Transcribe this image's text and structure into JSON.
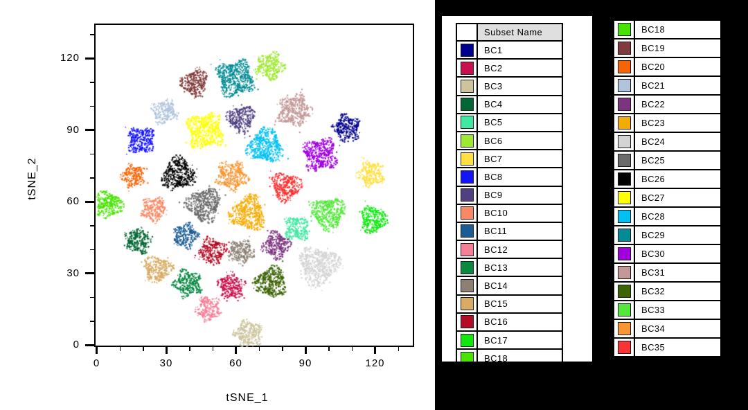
{
  "chart_data": {
    "type": "scatter",
    "title": "",
    "xlabel": "tSNE_1",
    "ylabel": "tSNE_2",
    "xlim": [
      -1,
      137
    ],
    "ylim": [
      -1,
      134.5
    ],
    "x_major_ticks": [
      0,
      30,
      60,
      90,
      120
    ],
    "y_major_ticks": [
      0,
      30,
      60,
      90,
      120
    ],
    "minor_tick_interval": 10,
    "grid": false,
    "legend_position": "right-two-column-table",
    "clusters": [
      {
        "name": "BC1",
        "color": "#00008F",
        "cx": 107.5,
        "cy": 91,
        "r": 5.3
      },
      {
        "name": "BC2",
        "color": "#C8104C",
        "cx": 58,
        "cy": 25,
        "r": 5.2
      },
      {
        "name": "BC3",
        "color": "#CCC49C",
        "cx": 65,
        "cy": 5,
        "r": 5.5
      },
      {
        "name": "BC4",
        "color": "#006633",
        "cx": 17.5,
        "cy": 44,
        "r": 5.2
      },
      {
        "name": "BC5",
        "color": "#40E8A0",
        "cx": 86,
        "cy": 49,
        "r": 5.0
      },
      {
        "name": "BC6",
        "color": "#9FE832",
        "cx": 74.5,
        "cy": 117,
        "r": 5.5
      },
      {
        "name": "BC7",
        "color": "#FFE040",
        "cx": 118,
        "cy": 72,
        "r": 5.2
      },
      {
        "name": "BC8",
        "color": "#1414FF",
        "cx": 19,
        "cy": 86,
        "r": 5.4
      },
      {
        "name": "BC9",
        "color": "#504080",
        "cx": 62,
        "cy": 95,
        "r": 5.5
      },
      {
        "name": "BC10",
        "color": "#FA8864",
        "cx": 24.5,
        "cy": 57,
        "r": 5.0
      },
      {
        "name": "BC11",
        "color": "#1C5C94",
        "cx": 38,
        "cy": 46,
        "r": 5.0
      },
      {
        "name": "BC12",
        "color": "#F48098",
        "cx": 48,
        "cy": 15.5,
        "r": 5.0
      },
      {
        "name": "BC13",
        "color": "#088840",
        "cx": 39,
        "cy": 26,
        "r": 5.4
      },
      {
        "name": "BC14",
        "color": "#8C8074",
        "cx": 62,
        "cy": 39,
        "r": 5.0
      },
      {
        "name": "BC15",
        "color": "#D8AC64",
        "cx": 26,
        "cy": 32,
        "r": 5.5
      },
      {
        "name": "BC16",
        "color": "#B40C24",
        "cx": 49.5,
        "cy": 39.5,
        "r": 5.4
      },
      {
        "name": "BC17",
        "color": "#10E810",
        "cx": 119,
        "cy": 53,
        "r": 5.4
      },
      {
        "name": "BC18",
        "color": "#48E400",
        "cx": 5,
        "cy": 59,
        "r": 5.5
      },
      {
        "name": "BC19",
        "color": "#803C3C",
        "cx": 42,
        "cy": 110,
        "r": 5.4
      },
      {
        "name": "BC20",
        "color": "#F86400",
        "cx": 15.5,
        "cy": 71,
        "r": 4.6
      },
      {
        "name": "BC21",
        "color": "#B0C4DC",
        "cx": 29,
        "cy": 98,
        "r": 5.0
      },
      {
        "name": "BC22",
        "color": "#7C3480",
        "cx": 77,
        "cy": 42,
        "r": 5.4
      },
      {
        "name": "BC23",
        "color": "#F4AC04",
        "cx": 65,
        "cy": 55.5,
        "r": 7.0
      },
      {
        "name": "BC24",
        "color": "#D4D4D4",
        "cx": 95.5,
        "cy": 33.5,
        "r": 7.8
      },
      {
        "name": "BC25",
        "color": "#6C6C6C",
        "cx": 46,
        "cy": 59,
        "r": 6.8
      },
      {
        "name": "BC26",
        "color": "#000000",
        "cx": 35,
        "cy": 72,
        "r": 6.6
      },
      {
        "name": "BC27",
        "color": "#FFFF00",
        "cx": 46.5,
        "cy": 90,
        "r": 7.4
      },
      {
        "name": "BC28",
        "color": "#00C0F4",
        "cx": 72.5,
        "cy": 83.5,
        "r": 7.0
      },
      {
        "name": "BC29",
        "color": "#048C94",
        "cx": 59.5,
        "cy": 112,
        "r": 7.4
      },
      {
        "name": "BC30",
        "color": "#A000DC",
        "cx": 96,
        "cy": 80,
        "r": 6.8
      },
      {
        "name": "BC31",
        "color": "#C49898",
        "cx": 85,
        "cy": 98.5,
        "r": 6.6
      },
      {
        "name": "BC32",
        "color": "#3C6404",
        "cx": 75,
        "cy": 26.5,
        "r": 6.4
      },
      {
        "name": "BC33",
        "color": "#54E83C",
        "cx": 99.5,
        "cy": 55.5,
        "r": 6.6
      },
      {
        "name": "BC34",
        "color": "#F89634",
        "cx": 58,
        "cy": 71,
        "r": 6.0
      },
      {
        "name": "BC35",
        "color": "#F83434",
        "cx": 81.5,
        "cy": 66.5,
        "r": 6.0
      }
    ]
  },
  "legend": {
    "header_label": "Subset Name",
    "left_table_count": 17,
    "left_table_has_clipped_next_row": true,
    "right_table_start_index": 17,
    "right_table_count": 18
  }
}
